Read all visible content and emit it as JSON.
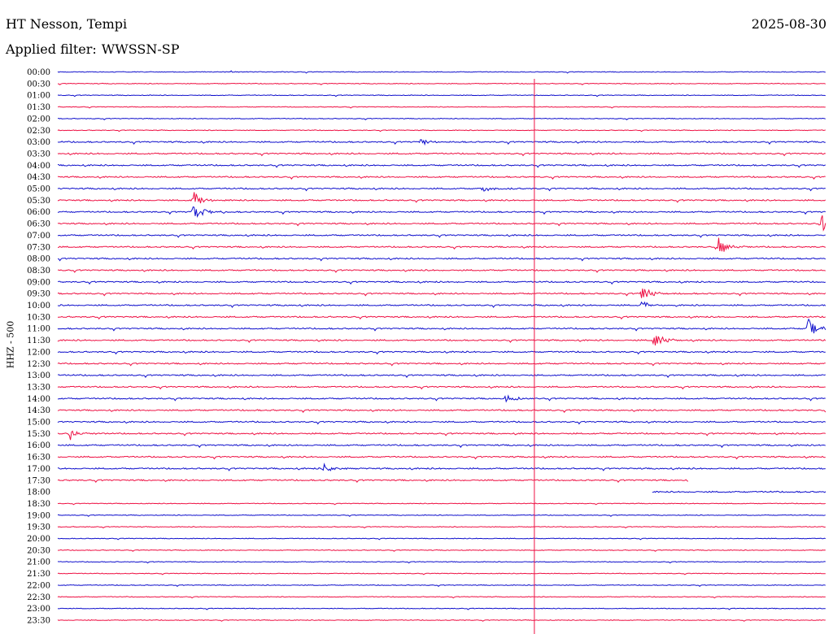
{
  "header": {
    "station": "HT Nesson, Tempi",
    "date": "2025-08-30",
    "filter_label": "Applied filter:",
    "filter_value": "WWSSN-SP"
  },
  "colors": {
    "even_trace": "#1010cc",
    "odd_trace": "#ee1144",
    "marker": "#ee1144",
    "background": "#ffffff"
  },
  "chart_data": {
    "type": "helicorder",
    "ylabel": "HHZ - 500",
    "rows": [
      "00:00",
      "00:30",
      "01:00",
      "01:30",
      "02:00",
      "02:30",
      "03:00",
      "03:30",
      "04:00",
      "04:30",
      "05:00",
      "05:30",
      "06:00",
      "06:30",
      "07:00",
      "07:30",
      "08:00",
      "08:30",
      "09:00",
      "09:30",
      "10:00",
      "10:30",
      "11:00",
      "11:30",
      "12:00",
      "12:30",
      "13:00",
      "13:30",
      "14:00",
      "14:30",
      "15:00",
      "15:30",
      "16:00",
      "16:30",
      "17:00",
      "17:30",
      "18:00",
      "18:30",
      "19:00",
      "19:30",
      "20:00",
      "20:30",
      "21:00",
      "21:30",
      "22:00",
      "22:30",
      "23:00",
      "23:30"
    ],
    "minutes_per_row": 30,
    "current_time_marker_minute": 18.6,
    "row_17_30_recorded_until_minute": 24.6,
    "row_18_00_recorded_from_minute": 23.2,
    "events": [
      {
        "row": "05:30",
        "minute": 5.3,
        "amplitude": "large"
      },
      {
        "row": "06:00",
        "minute": 5.3,
        "amplitude": "large"
      },
      {
        "row": "06:30",
        "minute": 29.8,
        "amplitude": "large"
      },
      {
        "row": "07:30",
        "minute": 25.8,
        "amplitude": "large"
      },
      {
        "row": "09:30",
        "minute": 22.8,
        "amplitude": "large"
      },
      {
        "row": "10:00",
        "minute": 22.8,
        "amplitude": "medium"
      },
      {
        "row": "11:00",
        "minute": 29.3,
        "amplitude": "large"
      },
      {
        "row": "11:30",
        "minute": 23.3,
        "amplitude": "large"
      },
      {
        "row": "15:30",
        "minute": 0.5,
        "amplitude": "medium"
      },
      {
        "row": "05:00",
        "minute": 16.6,
        "amplitude": "medium"
      },
      {
        "row": "03:00",
        "minute": 14.2,
        "amplitude": "medium"
      },
      {
        "row": "17:00",
        "minute": 10.4,
        "amplitude": "medium"
      },
      {
        "row": "14:00",
        "minute": 17.5,
        "amplitude": "medium"
      }
    ]
  }
}
